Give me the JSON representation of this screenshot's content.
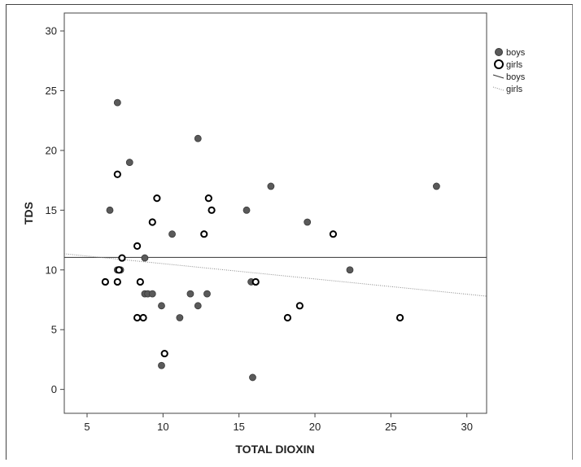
{
  "chart_data": {
    "type": "scatter",
    "title": "",
    "xlabel": "TOTAL DIOXIN",
    "ylabel": "TDS",
    "xlim": [
      3.5,
      31.3
    ],
    "ylim": [
      -2,
      31.5
    ],
    "xticks": [
      5,
      10,
      15,
      20,
      25,
      30
    ],
    "yticks": [
      0,
      5,
      10,
      15,
      20,
      25,
      30
    ],
    "xtick_labels": [
      "5",
      "10",
      "15",
      "20",
      "25",
      "30"
    ],
    "ytick_labels": [
      "0",
      "5",
      "10",
      "15",
      "20",
      "25",
      "30"
    ],
    "grid": false,
    "legend_position": "top-right",
    "series": [
      {
        "name": "boys",
        "marker": "filled-circle",
        "color": "#5a5a5a",
        "points": [
          {
            "x": 7.0,
            "y": 24
          },
          {
            "x": 6.5,
            "y": 15
          },
          {
            "x": 7.8,
            "y": 19
          },
          {
            "x": 7.0,
            "y": 10
          },
          {
            "x": 7.2,
            "y": 10
          },
          {
            "x": 8.8,
            "y": 11
          },
          {
            "x": 8.8,
            "y": 8
          },
          {
            "x": 9.0,
            "y": 8
          },
          {
            "x": 9.3,
            "y": 8
          },
          {
            "x": 10.6,
            "y": 13
          },
          {
            "x": 9.9,
            "y": 7
          },
          {
            "x": 11.1,
            "y": 6
          },
          {
            "x": 9.9,
            "y": 2
          },
          {
            "x": 11.8,
            "y": 8
          },
          {
            "x": 12.3,
            "y": 21
          },
          {
            "x": 12.3,
            "y": 7
          },
          {
            "x": 12.9,
            "y": 8
          },
          {
            "x": 15.5,
            "y": 15
          },
          {
            "x": 15.8,
            "y": 9
          },
          {
            "x": 15.9,
            "y": 1
          },
          {
            "x": 17.1,
            "y": 17
          },
          {
            "x": 19.5,
            "y": 14
          },
          {
            "x": 22.3,
            "y": 10
          },
          {
            "x": 28.0,
            "y": 17
          }
        ]
      },
      {
        "name": "girls",
        "marker": "open-circle",
        "color": "#000000",
        "points": [
          {
            "x": 6.2,
            "y": 9
          },
          {
            "x": 7.0,
            "y": 18
          },
          {
            "x": 7.0,
            "y": 9
          },
          {
            "x": 7.1,
            "y": 10
          },
          {
            "x": 7.3,
            "y": 11
          },
          {
            "x": 8.3,
            "y": 12
          },
          {
            "x": 8.3,
            "y": 6
          },
          {
            "x": 8.5,
            "y": 9
          },
          {
            "x": 8.7,
            "y": 6
          },
          {
            "x": 9.3,
            "y": 14
          },
          {
            "x": 9.6,
            "y": 16
          },
          {
            "x": 10.1,
            "y": 3
          },
          {
            "x": 12.7,
            "y": 13
          },
          {
            "x": 13.0,
            "y": 16
          },
          {
            "x": 13.2,
            "y": 15
          },
          {
            "x": 16.1,
            "y": 9
          },
          {
            "x": 18.2,
            "y": 6
          },
          {
            "x": 19.0,
            "y": 7
          },
          {
            "x": 21.2,
            "y": 13
          },
          {
            "x": 25.6,
            "y": 6
          }
        ]
      }
    ],
    "fit_lines": [
      {
        "name": "boys",
        "style": "solid",
        "color": "#333333",
        "x": [
          3.5,
          31.3
        ],
        "y": [
          11.05,
          11.05
        ]
      },
      {
        "name": "girls",
        "style": "dotted",
        "color": "#8a8a8a",
        "x": [
          3.5,
          31.3
        ],
        "y": [
          11.35,
          7.8
        ]
      }
    ],
    "legend": [
      {
        "label": "boys",
        "kind": "filled-circle"
      },
      {
        "label": "girls",
        "kind": "open-circle"
      },
      {
        "label": "boys",
        "kind": "solid-line"
      },
      {
        "label": "girls",
        "kind": "dotted-line"
      }
    ]
  }
}
